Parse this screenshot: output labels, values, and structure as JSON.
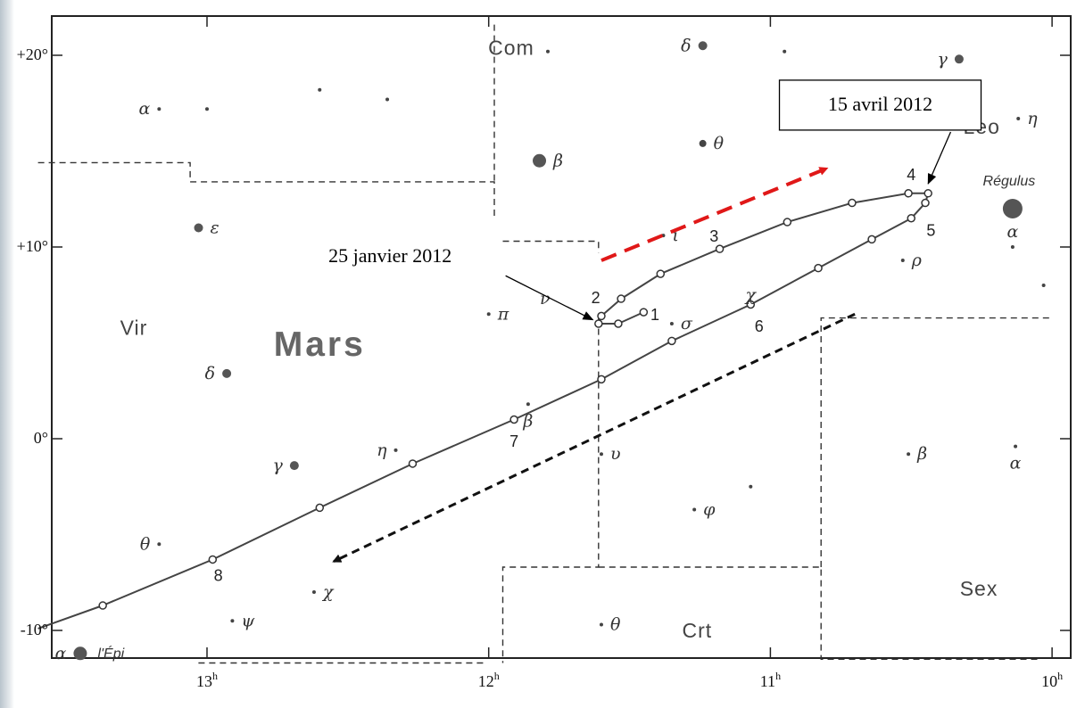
{
  "chart_data": {
    "type": "star-chart",
    "planet": "Mars",
    "x_axis": {
      "unit": "right ascension (h)",
      "ticks": [
        {
          "value": 13,
          "label": "13",
          "sup": "h"
        },
        {
          "value": 12,
          "label": "12",
          "sup": "h"
        },
        {
          "value": 11,
          "label": "11",
          "sup": "h"
        },
        {
          "value": 10,
          "label": "10",
          "sup": "h"
        }
      ],
      "range": [
        13.6,
        10.0
      ]
    },
    "y_axis": {
      "unit": "declination (°)",
      "ticks": [
        {
          "value": 20,
          "label": "+20°"
        },
        {
          "value": 10,
          "label": "+10°"
        },
        {
          "value": 0,
          "label": "0°"
        },
        {
          "value": -10,
          "label": "-10°"
        }
      ],
      "range": [
        -11.6,
        21.6
      ]
    },
    "constellations": [
      {
        "name": "Com",
        "ra": 11.92,
        "dec": 20.3
      },
      {
        "name": "Vir",
        "ra": 13.26,
        "dec": 5.7
      },
      {
        "name": "Crt",
        "ra": 11.26,
        "dec": -10.1
      },
      {
        "name": "Sex",
        "ra": 10.26,
        "dec": -7.9
      },
      {
        "name": "Leo",
        "ra": 10.25,
        "dec": 16.2
      }
    ],
    "title_label": "Mars",
    "stars": [
      {
        "label": "α",
        "ra": 13.17,
        "dec": 17.2,
        "size": 1,
        "label_side": "left"
      },
      {
        "ra": 13.0,
        "dec": 17.2,
        "size": 1
      },
      {
        "ra": 12.6,
        "dec": 18.2,
        "size": 1
      },
      {
        "ra": 12.36,
        "dec": 17.7,
        "size": 1
      },
      {
        "ra": 11.79,
        "dec": 20.2,
        "size": 1
      },
      {
        "label": "δ",
        "ra": 11.24,
        "dec": 20.5,
        "size": 2,
        "label_side": "left"
      },
      {
        "ra": 10.95,
        "dec": 20.2,
        "size": 1
      },
      {
        "label": "γ",
        "ra": 10.33,
        "dec": 19.8,
        "size": 2,
        "label_side": "left"
      },
      {
        "label": "η",
        "ra": 10.12,
        "dec": 16.7,
        "size": 1,
        "label_side": "right"
      },
      {
        "label": "θ",
        "ra": 11.24,
        "dec": 15.4,
        "size": 1.5,
        "label_side": "right"
      },
      {
        "label": "β",
        "ra": 11.82,
        "dec": 14.5,
        "size": 3,
        "label_side": "right"
      },
      {
        "label": "Régulus",
        "ra": 10.14,
        "dec": 12.0,
        "size": 4,
        "label_side": "none"
      },
      {
        "label": "α",
        "ra": 10.14,
        "dec": 10.8,
        "size": 0,
        "label_side": "center"
      },
      {
        "ra": 10.14,
        "dec": 10.0,
        "size": 1
      },
      {
        "ra": 10.03,
        "dec": 8.0,
        "size": 1
      },
      {
        "label": "ι",
        "ra": 11.38,
        "dec": 10.6,
        "size": 1,
        "label_side": "right"
      },
      {
        "label": "ρ",
        "ra": 10.53,
        "dec": 9.3,
        "size": 1,
        "label_side": "right"
      },
      {
        "label": "ν",
        "ra": 11.8,
        "dec": 7.3,
        "size": 0,
        "label_side": "center"
      },
      {
        "label": "π",
        "ra": 12.0,
        "dec": 6.5,
        "size": 1,
        "label_side": "right"
      },
      {
        "label": "σ",
        "ra": 11.35,
        "dec": 6.0,
        "size": 1,
        "label_side": "right"
      },
      {
        "label": "ε",
        "ra": 13.03,
        "dec": 11.0,
        "size": 2,
        "label_side": "right"
      },
      {
        "label": "δ",
        "ra": 12.93,
        "dec": 3.4,
        "size": 2,
        "label_side": "left"
      },
      {
        "label": "β",
        "ra": 11.86,
        "dec": 1.8,
        "size": 1,
        "label_side": "below"
      },
      {
        "label": "υ",
        "ra": 11.6,
        "dec": -0.8,
        "size": 1,
        "label_side": "right"
      },
      {
        "label": "η",
        "ra": 12.33,
        "dec": -0.6,
        "size": 1,
        "label_side": "left"
      },
      {
        "label": "γ",
        "ra": 12.69,
        "dec": -1.4,
        "size": 2,
        "label_side": "left"
      },
      {
        "ra": 11.07,
        "dec": -2.5,
        "size": 1
      },
      {
        "label": "φ",
        "ra": 11.27,
        "dec": -3.7,
        "size": 1,
        "label_side": "right"
      },
      {
        "label": "β",
        "ra": 10.51,
        "dec": -0.8,
        "size": 1,
        "label_side": "right"
      },
      {
        "label": "α",
        "ra": 10.13,
        "dec": -0.4,
        "size": 1,
        "label_side": "below"
      },
      {
        "label": "θ",
        "ra": 13.17,
        "dec": -5.5,
        "size": 1,
        "label_side": "left"
      },
      {
        "label": "χ",
        "ra": 12.62,
        "dec": -8.0,
        "size": 1,
        "label_side": "right"
      },
      {
        "label": "ψ",
        "ra": 12.91,
        "dec": -9.5,
        "size": 1,
        "label_side": "right"
      },
      {
        "label": "θ",
        "ra": 11.6,
        "dec": -9.7,
        "size": 1,
        "label_side": "right"
      },
      {
        "label": "χ",
        "ra": 11.07,
        "dec": 7.5,
        "size": 0,
        "label_side": "center"
      },
      {
        "label": "α",
        "ra": 13.45,
        "dec": -11.2,
        "size": 3,
        "label_side": "left",
        "name": "l'Épi"
      }
    ],
    "track": [
      {
        "ra": 11.45,
        "dec": 6.6
      },
      {
        "ra": 11.54,
        "dec": 6.0
      },
      {
        "ra": 11.61,
        "dec": 6.0
      },
      {
        "ra": 11.6,
        "dec": 6.4
      },
      {
        "ra": 11.53,
        "dec": 7.3
      },
      {
        "ra": 11.39,
        "dec": 8.6
      },
      {
        "ra": 11.18,
        "dec": 9.9
      },
      {
        "ra": 10.94,
        "dec": 11.3
      },
      {
        "ra": 10.71,
        "dec": 12.3
      },
      {
        "ra": 10.51,
        "dec": 12.8
      },
      {
        "ra": 10.44,
        "dec": 12.8
      },
      {
        "ra": 10.45,
        "dec": 12.3
      },
      {
        "ra": 10.5,
        "dec": 11.5
      },
      {
        "ra": 10.64,
        "dec": 10.4
      },
      {
        "ra": 10.83,
        "dec": 8.9
      },
      {
        "ra": 11.07,
        "dec": 7.0
      },
      {
        "ra": 11.35,
        "dec": 5.1
      },
      {
        "ra": 11.6,
        "dec": 3.1
      },
      {
        "ra": 11.91,
        "dec": 1.0
      },
      {
        "ra": 12.27,
        "dec": -1.3
      },
      {
        "ra": 12.6,
        "dec": -3.6
      },
      {
        "ra": 12.98,
        "dec": -6.3
      },
      {
        "ra": 13.37,
        "dec": -8.7
      },
      {
        "ra": 13.6,
        "dec": -9.9
      }
    ],
    "month_labels": [
      {
        "label": "1",
        "ra": 11.41,
        "dec": 6.4
      },
      {
        "label": "2",
        "ra": 11.62,
        "dec": 7.3
      },
      {
        "label": "3",
        "ra": 11.2,
        "dec": 10.5
      },
      {
        "label": "4",
        "ra": 10.5,
        "dec": 13.7
      },
      {
        "label": "5",
        "ra": 10.43,
        "dec": 10.8
      },
      {
        "label": "6",
        "ra": 11.04,
        "dec": 5.8
      },
      {
        "label": "7",
        "ra": 11.91,
        "dec": -0.2
      },
      {
        "label": "8",
        "ra": 12.96,
        "dec": -7.2
      }
    ],
    "constellation_boundaries": [
      [
        [
          13.6,
          14.4
        ],
        [
          13.06,
          14.4
        ],
        [
          13.06,
          13.4
        ],
        [
          11.98,
          13.4
        ],
        [
          11.98,
          11.6
        ]
      ],
      [
        [
          11.98,
          21.6
        ],
        [
          11.98,
          13.4
        ]
      ],
      [
        [
          11.95,
          10.3
        ],
        [
          11.61,
          10.3
        ],
        [
          11.61,
          9.7
        ]
      ],
      [
        [
          11.61,
          6.3
        ],
        [
          11.61,
          -6.7
        ],
        [
          11.95,
          -6.7
        ],
        [
          11.95,
          -11.7
        ]
      ],
      [
        [
          11.61,
          -6.7
        ],
        [
          10.82,
          -6.7
        ],
        [
          10.82,
          -11.5
        ],
        [
          10.05,
          -11.5
        ]
      ],
      [
        [
          10.82,
          -6.7
        ],
        [
          10.82,
          6.3
        ],
        [
          10.0,
          6.3
        ]
      ],
      [
        [
          12.02,
          -11.7
        ],
        [
          13.04,
          -11.7
        ]
      ]
    ],
    "annotations": [
      {
        "text": "25 janvier 2012",
        "ra": 12.35,
        "dec": 9.5
      },
      {
        "text": "15 avril 2012",
        "ra": 10.61,
        "dec": 17.4
      }
    ],
    "arrows": [
      {
        "from": {
          "ra": 11.6,
          "dec": 9.3
        },
        "to": {
          "ra": 10.8,
          "dec": 14.1
        },
        "color": "#e01818",
        "style": "dashed"
      },
      {
        "from": {
          "ra": 10.7,
          "dec": 6.5
        },
        "to": {
          "ra": 12.55,
          "dec": -6.4
        },
        "color": "#111111",
        "style": "dashed"
      }
    ],
    "grid": false
  }
}
